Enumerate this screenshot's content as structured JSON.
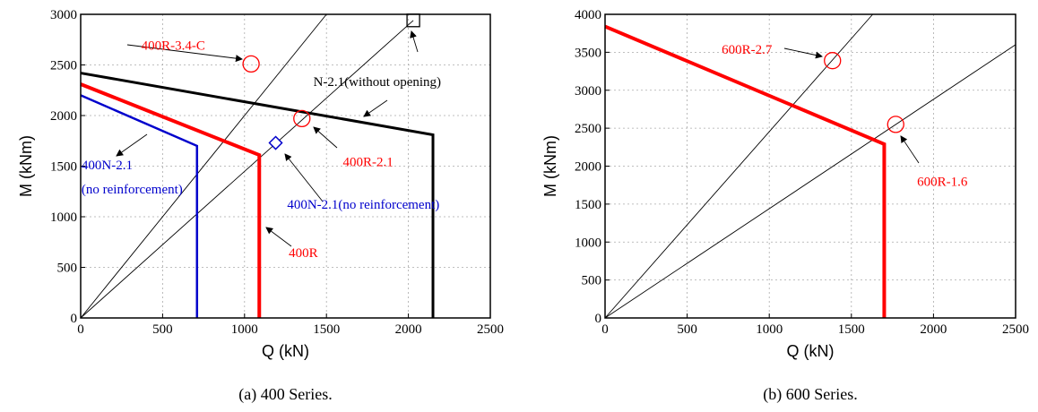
{
  "chart_data": [
    {
      "type": "line",
      "caption": "(a)   400 Series.",
      "xlabel": "Q (kN)",
      "ylabel": "M (kNm)",
      "xlim": [
        0,
        2500
      ],
      "ylim": [
        0,
        3000
      ],
      "xticks": [
        0,
        500,
        1000,
        1500,
        2000,
        2500
      ],
      "yticks": [
        0,
        500,
        1000,
        1500,
        2000,
        2500,
        3000
      ],
      "grid": true,
      "series": [
        {
          "name": "N-2.1(without opening)",
          "color": "#000000",
          "width": 3,
          "points": [
            [
              0,
              2420
            ],
            [
              2150,
              1810
            ],
            [
              2150,
              0
            ]
          ]
        },
        {
          "name": "400R",
          "color": "#ff0000",
          "width": 4,
          "points": [
            [
              0,
              2310
            ],
            [
              1090,
              1610
            ],
            [
              1090,
              0
            ]
          ]
        },
        {
          "name": "400N-2.1 (no reinforcement)",
          "color": "#0000cc",
          "width": 2.5,
          "points": [
            [
              0,
              2200
            ],
            [
              710,
              1700
            ],
            [
              710,
              0
            ]
          ]
        }
      ],
      "ref_lines": [
        {
          "color": "#000000",
          "points": [
            [
              0,
              0
            ],
            [
              2030,
              2940
            ]
          ]
        },
        {
          "color": "#000000",
          "points": [
            [
              0,
              0
            ],
            [
              1500,
              3000
            ]
          ]
        }
      ],
      "markers": [
        {
          "shape": "circle",
          "color": "#ff0000",
          "x": 1040,
          "y": 2510
        },
        {
          "shape": "circle",
          "color": "#ff0000",
          "x": 1350,
          "y": 1970
        },
        {
          "shape": "diamond",
          "color": "#0000cc",
          "x": 1190,
          "y": 1730
        },
        {
          "shape": "square",
          "color": "#000000",
          "x": 2030,
          "y": 2940
        }
      ],
      "annotations": [
        {
          "text": "400R-3.4-C",
          "color": "#ff0000",
          "x": 370,
          "y": 2650
        },
        {
          "text": "N-2.1(without opening)",
          "color": "#000000",
          "x": 1420,
          "y": 2290
        },
        {
          "text": "400R-2.1",
          "color": "#ff0000",
          "x": 1600,
          "y": 1500
        },
        {
          "text": "400N-2.1",
          "color": "#0000cc",
          "x": 5,
          "y": 1470
        },
        {
          "text": "(no reinforcement)",
          "color": "#0000cc",
          "x": 5,
          "y": 1230
        },
        {
          "text": "400N-2.1(no reinforcement)",
          "color": "#0000cc",
          "x": 1260,
          "y": 1080
        },
        {
          "text": "400R",
          "color": "#ff0000",
          "x": 1270,
          "y": 600
        }
      ]
    },
    {
      "type": "line",
      "caption": "(b)   600 Series.",
      "xlabel": "Q (kN)",
      "ylabel": "M (kNm)",
      "xlim": [
        0,
        2500
      ],
      "ylim": [
        0,
        4000
      ],
      "xticks": [
        0,
        500,
        1000,
        1500,
        2000,
        2500
      ],
      "yticks": [
        0,
        500,
        1000,
        1500,
        2000,
        2500,
        3000,
        3500,
        4000
      ],
      "grid": true,
      "series": [
        {
          "name": "600R",
          "color": "#ff0000",
          "width": 4,
          "points": [
            [
              0,
              3840
            ],
            [
              1700,
              2290
            ],
            [
              1700,
              0
            ]
          ]
        }
      ],
      "ref_lines": [
        {
          "color": "#000000",
          "points": [
            [
              0,
              0
            ],
            [
              1630,
              4000
            ]
          ]
        },
        {
          "color": "#000000",
          "points": [
            [
              0,
              0
            ],
            [
              2500,
              3600
            ]
          ]
        }
      ],
      "markers": [
        {
          "shape": "circle",
          "color": "#ff0000",
          "x": 1385,
          "y": 3390
        },
        {
          "shape": "circle",
          "color": "#ff0000",
          "x": 1770,
          "y": 2550
        }
      ],
      "annotations": [
        {
          "text": "600R-2.7",
          "color": "#ff0000",
          "x": 710,
          "y": 3480
        },
        {
          "text": "600R-1.6",
          "color": "#ff0000",
          "x": 1900,
          "y": 1740
        }
      ]
    }
  ]
}
